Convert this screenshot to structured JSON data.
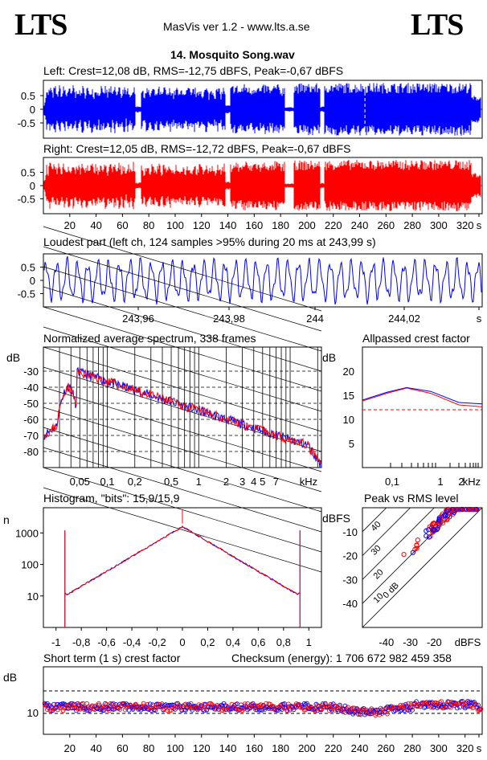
{
  "header": {
    "logo_left": "LTS",
    "logo_right": "LTS",
    "app_title": "MasVis ver 1.2 - www.lts.a.se",
    "file_title": "14. Mosquito Song.wav"
  },
  "colors": {
    "left": "#0000ff",
    "right": "#ff0000"
  },
  "chart_data": [
    {
      "type": "area",
      "title": "Left: Crest=12,08 dB, RMS=-12,75 dBFS, Peak=-0,67 dBFS",
      "ytick_labels": [
        "0.5",
        "0",
        "-0.5"
      ],
      "ylim": [
        -1,
        1
      ],
      "series": [
        {
          "channel": "left",
          "color": "#0000ff"
        }
      ]
    },
    {
      "type": "area",
      "title": "Right: Crest=12,05 dB, RMS=-12,72 dBFS, Peak=-0,67 dBFS",
      "ytick_labels": [
        "0.5",
        "0",
        "-0.5"
      ],
      "xtick_labels": [
        "20",
        "40",
        "60",
        "80",
        "100",
        "120",
        "140",
        "160",
        "180",
        "200",
        "220",
        "240",
        "260",
        "280",
        "300",
        "320",
        "s"
      ],
      "ylim": [
        -1,
        1
      ],
      "xlim": [
        0,
        333
      ],
      "series": [
        {
          "channel": "right",
          "color": "#ff0000"
        }
      ]
    },
    {
      "type": "line",
      "title": "Loudest part (left  ch, 124 samples >95% during 20 ms at 243,99 s)",
      "ytick_labels": [
        "0.5",
        "0",
        "-0.5"
      ],
      "xtick_labels": [
        "243,96",
        "243,98",
        "244",
        "244,02",
        "s"
      ],
      "ylim": [
        -1,
        1
      ],
      "xlim": [
        243.946,
        244.037
      ]
    },
    {
      "type": "line",
      "title": "Normalized average spectrum, 338 frames",
      "ylabel": "dB",
      "ytick_labels": [
        "-30",
        "-40",
        "-50",
        "-60",
        "-70",
        "-80"
      ],
      "xtick_labels": [
        "0,05",
        "0,1",
        "0,2",
        "0,5",
        "1",
        "2",
        "3",
        "4",
        "5",
        "7",
        "kHz"
      ],
      "ylim": [
        -90,
        -15
      ],
      "x_scale": "log",
      "xlim_khz": [
        0.02,
        22
      ]
    },
    {
      "type": "line",
      "title": "Allpassed crest factor",
      "ylabel": "dB",
      "ytick_labels": [
        "20",
        "15",
        "10",
        "5"
      ],
      "xtick_labels": [
        "0,1",
        "1",
        "2",
        "kHz"
      ],
      "ylim": [
        0,
        25
      ],
      "reference_level": 12
    },
    {
      "type": "line",
      "title": "Histogram, \"bits\": 15,9/15,9",
      "ylabel": "n",
      "ytick_labels": [
        "1000",
        "100",
        "10"
      ],
      "xtick_labels": [
        "-1",
        "-0,8",
        "-0,6",
        "-0,4",
        "-0,2",
        "0",
        "0,2",
        "0,4",
        "0,6",
        "0,8",
        "1"
      ],
      "y_scale": "log",
      "xlim": [
        -1.1,
        1.1
      ]
    },
    {
      "type": "scatter",
      "title": "Peak vs RMS level",
      "ylabel": "dBFS",
      "ytick_labels": [
        "-10",
        "-20",
        "-30",
        "-40"
      ],
      "xtick_labels": [
        "-40",
        "-30",
        "-20",
        "dBFS"
      ],
      "diagonal_labels": [
        "40",
        "30",
        "20",
        "10",
        "0 dB"
      ],
      "xlim": [
        -50,
        0
      ],
      "ylim": [
        -50,
        0
      ]
    },
    {
      "type": "scatter",
      "title": "Short term (1 s) crest factor",
      "ylabel": "dB",
      "ytick_labels": [
        "10"
      ],
      "xtick_labels": [
        "20",
        "40",
        "60",
        "80",
        "100",
        "120",
        "140",
        "160",
        "180",
        "200",
        "220",
        "240",
        "260",
        "280",
        "300",
        "320",
        "s"
      ],
      "xlim": [
        0,
        333
      ]
    }
  ],
  "checksum_text": "Checksum (energy):  1 706 672 982 459 358"
}
